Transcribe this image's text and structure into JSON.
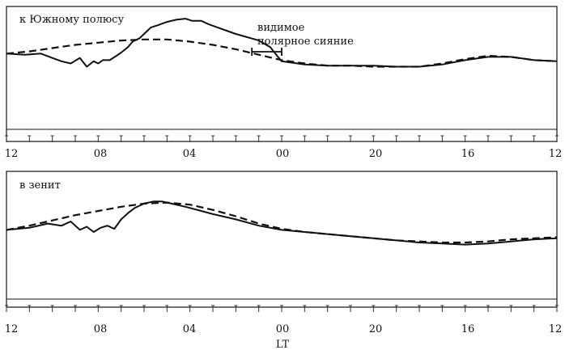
{
  "chart_data": [
    {
      "type": "line",
      "label": "к Южному полюсу",
      "annotation": "видимое\nполярное сияние",
      "annotation_interval": [
        1.3,
        0.0
      ],
      "xlabel": "",
      "x_ticks": [
        "12",
        "08",
        "04",
        "00",
        "20",
        "16",
        "12"
      ],
      "x_tick_values": [
        12,
        8,
        4,
        0,
        -4,
        -8,
        -12
      ],
      "xlim": [
        12,
        -12
      ],
      "series": [
        {
          "style": "solid",
          "x": [
            12,
            11.2,
            10.5,
            10.0,
            9.6,
            9.2,
            8.8,
            8.5,
            8.2,
            8.0,
            7.8,
            7.5,
            7.2,
            7.0,
            6.7,
            6.5,
            6.2,
            6.0,
            5.7,
            5.4,
            5.0,
            4.6,
            4.2,
            3.9,
            3.5,
            3.2,
            2.8,
            2.4,
            2.0,
            1.5,
            1.0,
            0.5,
            0.2,
            0.0,
            -1.0,
            -2.0,
            -3.0,
            -4.0,
            -5.0,
            -6.0,
            -7.0,
            -8.0,
            -9.0,
            -10.0,
            -11.0,
            -12.0
          ],
          "y": [
            0.62,
            0.61,
            0.62,
            0.58,
            0.55,
            0.53,
            0.58,
            0.5,
            0.55,
            0.53,
            0.56,
            0.56,
            0.6,
            0.63,
            0.68,
            0.73,
            0.76,
            0.8,
            0.86,
            0.88,
            0.91,
            0.93,
            0.94,
            0.92,
            0.92,
            0.89,
            0.86,
            0.83,
            0.8,
            0.77,
            0.74,
            0.68,
            0.6,
            0.55,
            0.52,
            0.51,
            0.51,
            0.51,
            0.5,
            0.5,
            0.52,
            0.56,
            0.59,
            0.59,
            0.56,
            0.55
          ]
        },
        {
          "style": "dashed",
          "x": [
            12,
            11,
            10,
            9,
            8,
            7,
            6,
            5,
            4,
            3,
            2,
            1,
            0,
            -1,
            -2,
            -3,
            -4,
            -5,
            -6,
            -7,
            -8,
            -9,
            -10,
            -11,
            -12
          ],
          "y": [
            0.62,
            0.64,
            0.67,
            0.7,
            0.72,
            0.74,
            0.75,
            0.75,
            0.73,
            0.7,
            0.66,
            0.61,
            0.56,
            0.53,
            0.51,
            0.51,
            0.5,
            0.5,
            0.5,
            0.53,
            0.57,
            0.6,
            0.59,
            0.56,
            0.55
          ]
        }
      ]
    },
    {
      "type": "line",
      "label": "в зенит",
      "xlabel": "LT",
      "x_ticks": [
        "12",
        "08",
        "04",
        "00",
        "20",
        "16",
        "12"
      ],
      "x_tick_values": [
        12,
        8,
        4,
        0,
        -4,
        -8,
        -12
      ],
      "xlim": [
        12,
        -12
      ],
      "series": [
        {
          "style": "solid",
          "x": [
            12,
            11.0,
            10.2,
            9.6,
            9.2,
            8.8,
            8.5,
            8.2,
            7.9,
            7.6,
            7.3,
            7.0,
            6.7,
            6.4,
            6.0,
            5.6,
            5.2,
            4.8,
            4.2,
            3.5,
            3.0,
            2.0,
            1.0,
            0.0,
            -1.0,
            -2.0,
            -3.0,
            -4.0,
            -5.0,
            -6.0,
            -7.0,
            -8.0,
            -9.0,
            -10.0,
            -11.0,
            -12.0
          ],
          "y": [
            0.62,
            0.64,
            0.68,
            0.66,
            0.7,
            0.62,
            0.65,
            0.6,
            0.64,
            0.66,
            0.63,
            0.72,
            0.78,
            0.83,
            0.87,
            0.89,
            0.89,
            0.87,
            0.84,
            0.8,
            0.77,
            0.72,
            0.66,
            0.62,
            0.6,
            0.58,
            0.56,
            0.54,
            0.52,
            0.5,
            0.49,
            0.48,
            0.49,
            0.51,
            0.53,
            0.54
          ]
        },
        {
          "style": "dashed",
          "x": [
            12,
            11,
            10,
            9,
            8,
            7,
            6,
            5,
            4,
            3,
            2,
            1,
            0,
            -1,
            -2,
            -3,
            -4,
            -5,
            -6,
            -7,
            -8,
            -9,
            -10,
            -11,
            -12
          ],
          "y": [
            0.62,
            0.66,
            0.71,
            0.76,
            0.8,
            0.84,
            0.87,
            0.88,
            0.86,
            0.81,
            0.75,
            0.68,
            0.63,
            0.6,
            0.58,
            0.56,
            0.54,
            0.52,
            0.51,
            0.5,
            0.5,
            0.51,
            0.53,
            0.54,
            0.55
          ]
        }
      ]
    }
  ]
}
